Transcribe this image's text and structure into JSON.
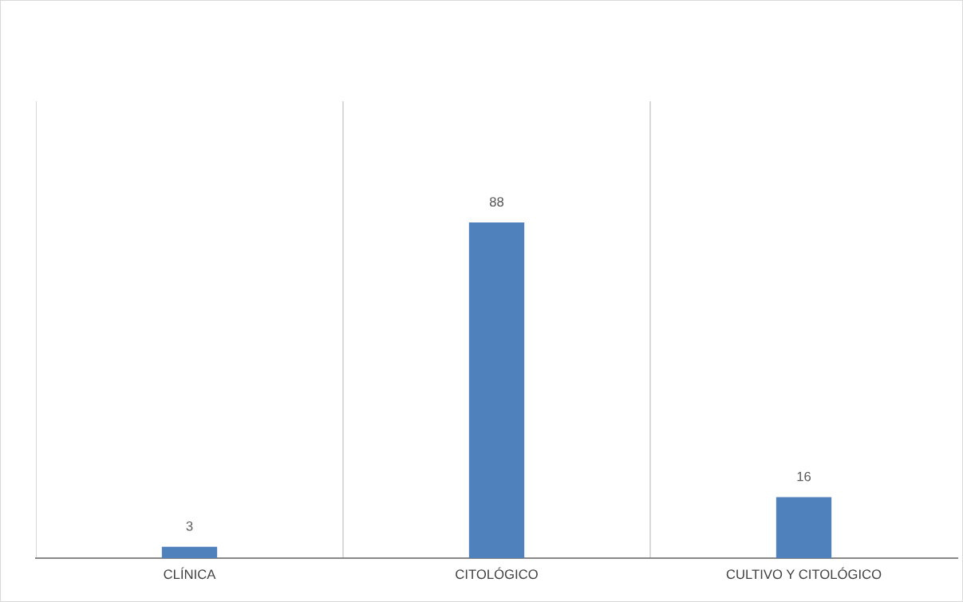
{
  "chart_data": {
    "type": "bar",
    "categories": [
      "CLÍNICA",
      "CITOLÓGICO",
      "CULTIVO Y CITOLÓGICO"
    ],
    "values": [
      3,
      88,
      16
    ],
    "color": "#4f81bd",
    "data_labels": true,
    "grid": "x"
  }
}
